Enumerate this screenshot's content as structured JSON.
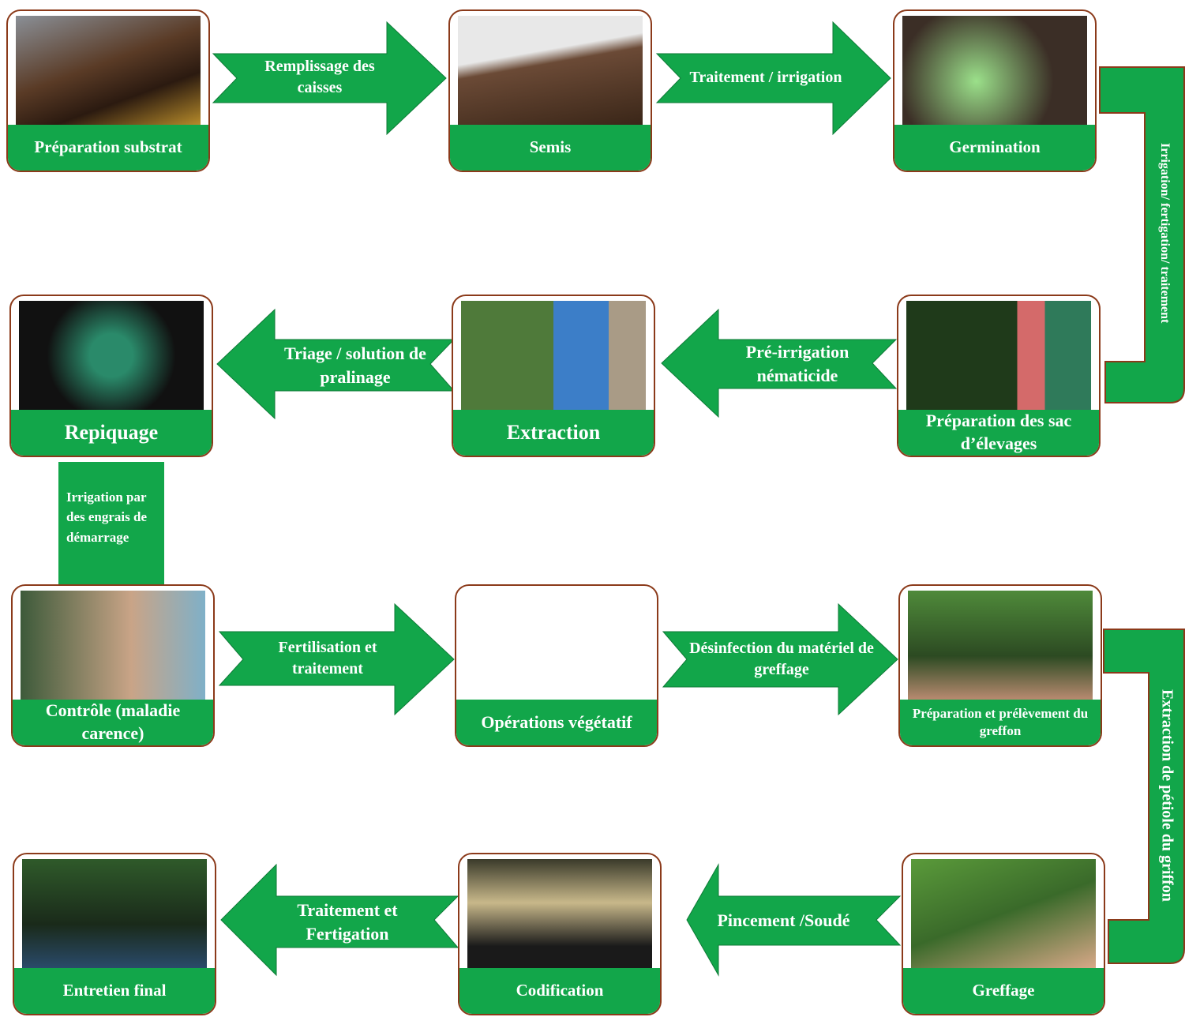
{
  "nodes": [
    {
      "label": "Préparation substrat"
    },
    {
      "label": "Semis"
    },
    {
      "label": "Germination"
    },
    {
      "label": "Repiquage"
    },
    {
      "label": "Extraction"
    },
    {
      "label": "Préparation des sac d’élevages"
    },
    {
      "label": "Contrôle (maladie carence)"
    },
    {
      "label": "Opérations végétatif"
    },
    {
      "label": "Préparation et prélèvement du greffon"
    },
    {
      "label": "Entretien final"
    },
    {
      "label": "Codification"
    },
    {
      "label": "Greffage"
    }
  ],
  "arrows": [
    {
      "label": "Remplissage des caisses"
    },
    {
      "label": "Traitement / irrigation"
    },
    {
      "label": "Pré-irrigation nématicide"
    },
    {
      "label": "Triage / solution de pralinage"
    },
    {
      "label": "Fertilisation et traitement"
    },
    {
      "label": "Désinfection du matériel de greffage"
    },
    {
      "label": "Pincement /Soudé"
    },
    {
      "label": "Traitement et Fertigation"
    }
  ],
  "connectors": [
    {
      "label": "Irrigation/ fertigation/ traitement"
    },
    {
      "label": "Irrigation par des engrais de démarrage"
    },
    {
      "label": "Extraction de pétiole du griffon"
    }
  ]
}
